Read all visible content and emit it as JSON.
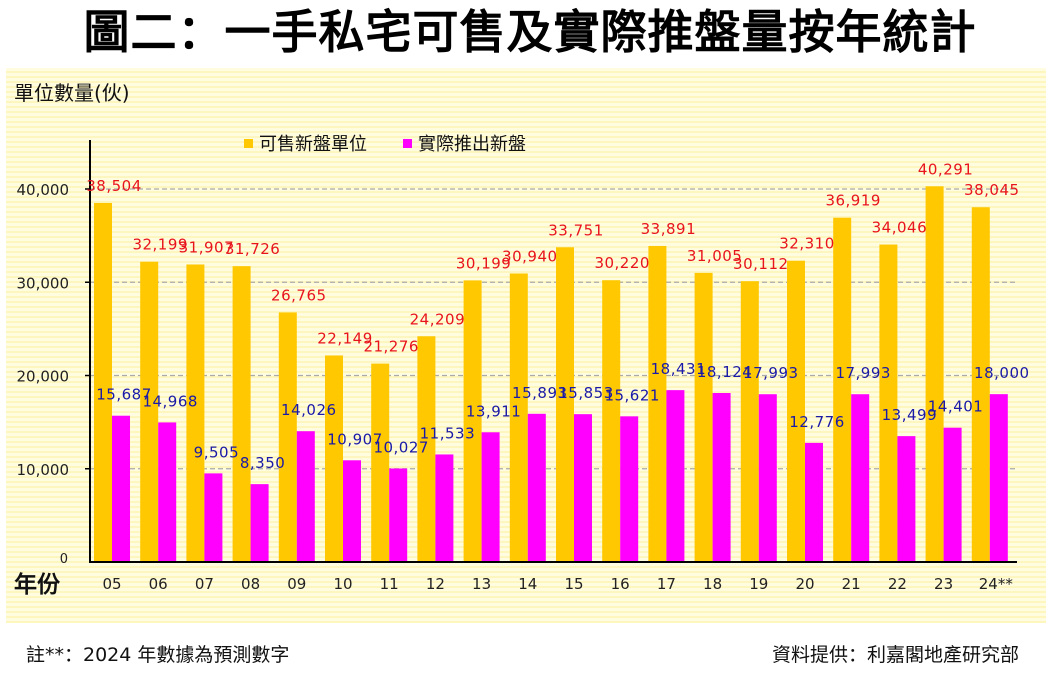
{
  "title": "圖二：一手私宅可售及實際推盤量按年統計",
  "footnote": "註**：2024 年數據為預測數字",
  "source": "資料提供：利嘉閣地產研究部",
  "chart_data": {
    "type": "bar",
    "title": "圖二：一手私宅可售及實際推盤量按年統計",
    "ylabel": "單位數量(伙)",
    "xlabel": "年份",
    "categories": [
      "05",
      "06",
      "07",
      "08",
      "09",
      "10",
      "11",
      "12",
      "13",
      "14",
      "15",
      "16",
      "17",
      "18",
      "19",
      "20",
      "21",
      "22",
      "23",
      "24**"
    ],
    "ylim": [
      0,
      40000
    ],
    "yticks": [
      0,
      10000,
      20000,
      30000,
      40000
    ],
    "ytick_labels": [
      "0",
      "10,000",
      "20,000",
      "30,000",
      "40,000"
    ],
    "grid": true,
    "legend_position": "top-center",
    "series": [
      {
        "name": "可售新盤單位",
        "color": "#ffc800",
        "label_color": "#e8141c",
        "values": [
          38504,
          32199,
          31907,
          31726,
          26765,
          22149,
          21276,
          24209,
          30199,
          30940,
          33751,
          30220,
          33891,
          31005,
          30112,
          32310,
          36919,
          34046,
          40291,
          38045
        ],
        "labels": [
          "38,504",
          "32,199",
          "31,907",
          "31,726",
          "26,765",
          "22,149",
          "21,276",
          "24,209",
          "30,199",
          "30,940",
          "33,751",
          "30,220",
          "33,891",
          "31,005",
          "30,112",
          "32,310",
          "36,919",
          "34,046",
          "40,291",
          "38,045"
        ]
      },
      {
        "name": "實際推出新盤",
        "color": "#ff00ff",
        "label_color": "#1a1aa8",
        "values": [
          15687,
          14968,
          9505,
          8350,
          14026,
          10907,
          10027,
          11533,
          13911,
          15893,
          15853,
          15621,
          18431,
          18124,
          17993,
          12776,
          17993,
          13499,
          14401,
          18000
        ],
        "labels": [
          "15,687",
          "14,968",
          "9,505",
          "8,350",
          "14,026",
          "10,907",
          "10,027",
          "11,533",
          "13,911",
          "15,893",
          "15,853",
          "15,621",
          "18,431",
          "18,124",
          "17,993",
          "12,776",
          "17,993",
          "13,499",
          "14,401",
          "18,000"
        ]
      }
    ]
  }
}
